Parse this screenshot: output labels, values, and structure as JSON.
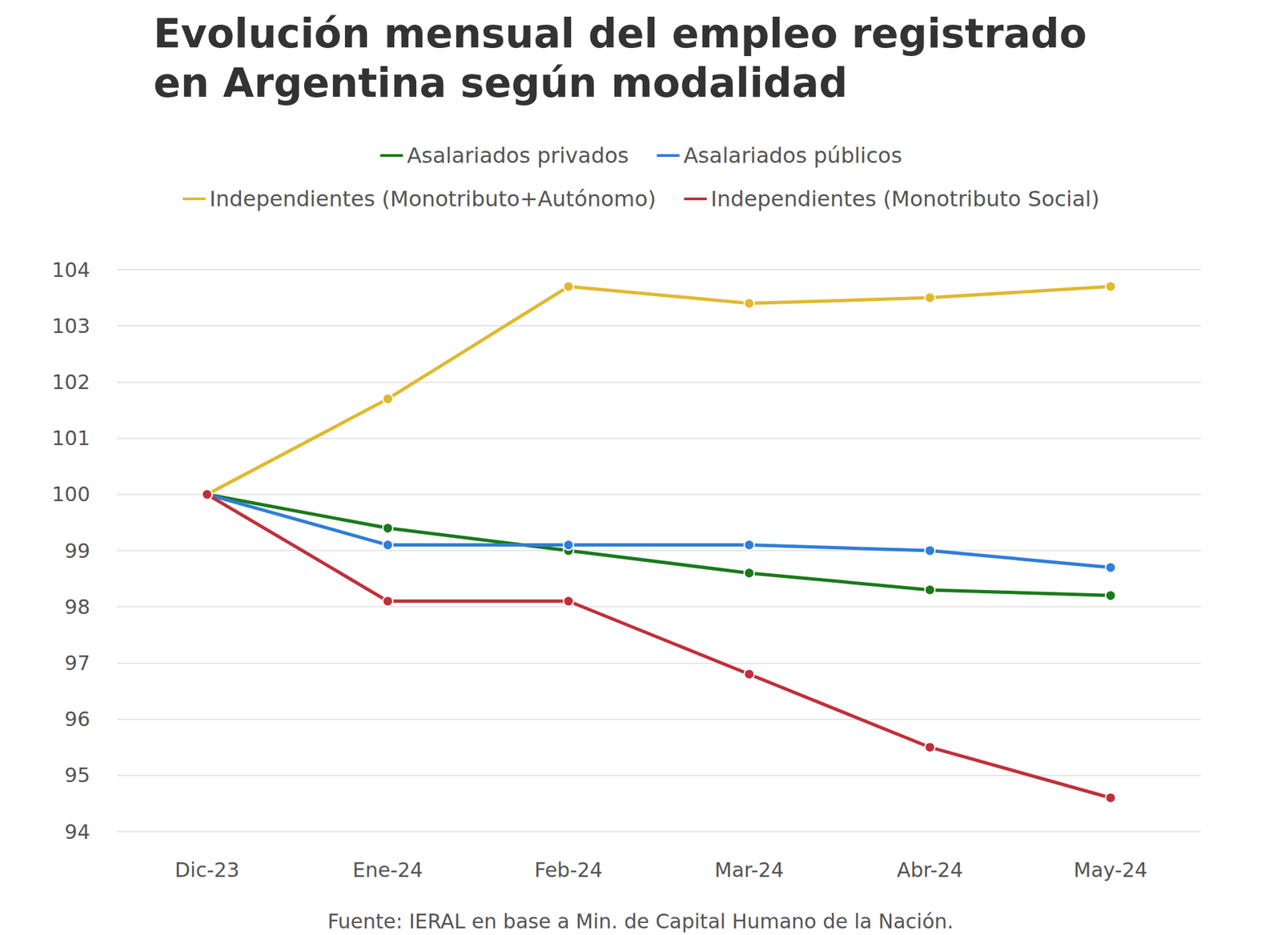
{
  "chart_data": {
    "type": "line",
    "title": "Evolución mensual del empleo registrado en Argentina según modalidad",
    "source": "Fuente: IERAL en base a Min. de Capital Humano de la Nación.",
    "categories": [
      "Dic-23",
      "Ene-24",
      "Feb-24",
      "Mar-24",
      "Abr-24",
      "May-24"
    ],
    "series": [
      {
        "name": "Asalariados privados",
        "color": "#1a7a1a",
        "values": [
          100,
          99.4,
          99.0,
          98.6,
          98.3,
          98.2
        ]
      },
      {
        "name": "Asalariados públicos",
        "color": "#2f7ed8",
        "values": [
          100,
          99.1,
          99.1,
          99.1,
          99.0,
          98.7
        ]
      },
      {
        "name": "Independientes (Monotributo+Autónomo)",
        "color": "#e0b92e",
        "values": [
          100,
          101.7,
          103.7,
          103.4,
          103.5,
          103.7
        ]
      },
      {
        "name": "Independientes (Monotributo Social)",
        "color": "#c0303a",
        "values": [
          100,
          98.1,
          98.1,
          96.8,
          95.5,
          94.6
        ]
      }
    ],
    "ylim": [
      94,
      104
    ],
    "yticks": [
      94,
      95,
      96,
      97,
      98,
      99,
      100,
      101,
      102,
      103,
      104
    ],
    "grid": true,
    "legend": "top",
    "marker": "circle"
  }
}
